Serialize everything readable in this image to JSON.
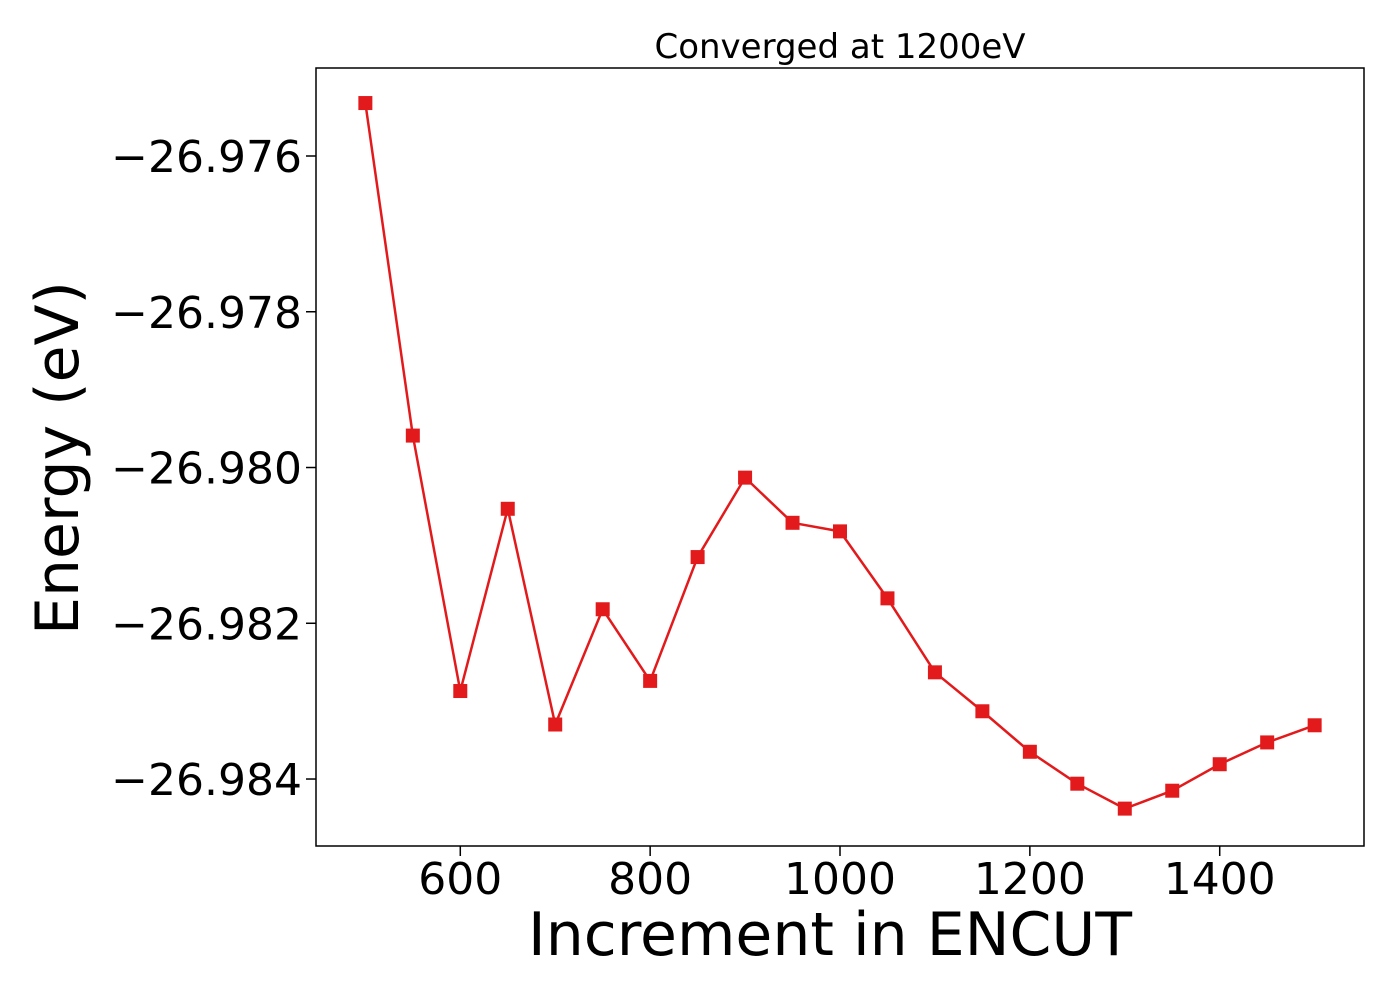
{
  "chart_data": {
    "type": "line",
    "title": "Converged at 1200eV",
    "xlabel": "Increment in ENCUT",
    "ylabel": "Energy (eV)",
    "xlim": [
      448,
      1552
    ],
    "ylim": [
      -26.98486,
      -26.97487
    ],
    "x_ticks": [
      600,
      800,
      1000,
      1200,
      1400
    ],
    "x_tick_labels": [
      "600",
      "800",
      "1000",
      "1200",
      "1400"
    ],
    "y_ticks": [
      -26.976,
      -26.978,
      -26.98,
      -26.982,
      -26.984
    ],
    "y_tick_labels": [
      "−26.976",
      "−26.978",
      "−26.980",
      "−26.982",
      "−26.984"
    ],
    "grid": false,
    "legend": "none",
    "series": [
      {
        "color": "#e31a1c",
        "marker": "square",
        "x": [
          500,
          550,
          600,
          650,
          700,
          750,
          800,
          850,
          900,
          950,
          1000,
          1050,
          1100,
          1150,
          1200,
          1250,
          1300,
          1350,
          1400,
          1450,
          1500
        ],
        "y": [
          -26.97532,
          -26.97959,
          -26.98287,
          -26.98053,
          -26.9833,
          -26.98182,
          -26.98274,
          -26.98115,
          -26.98013,
          -26.98071,
          -26.98082,
          -26.98168,
          -26.98263,
          -26.98313,
          -26.98365,
          -26.98406,
          -26.98438,
          -26.98415,
          -26.98381,
          -26.98353,
          -26.98331
        ]
      }
    ]
  }
}
